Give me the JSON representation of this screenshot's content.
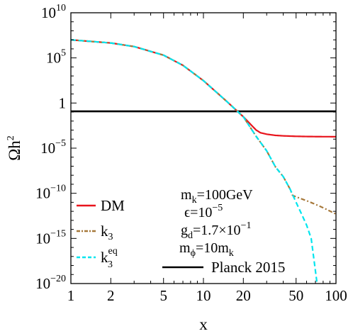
{
  "chart_data": {
    "type": "line",
    "xlabel": "x",
    "ylabel": "Ωh",
    "ylabel_sup": "2",
    "x_scale": "log",
    "y_scale": "log",
    "xlim": [
      1,
      100
    ],
    "ylim": [
      1e-20,
      10000000000.0
    ],
    "grid": false,
    "legend_position": "bottom-left",
    "x_ticks": [
      {
        "value": 1,
        "label": "1"
      },
      {
        "value": 2,
        "label": "2"
      },
      {
        "value": 5,
        "label": "5"
      },
      {
        "value": 10,
        "label": "10"
      },
      {
        "value": 20,
        "label": "20"
      },
      {
        "value": 50,
        "label": "50"
      },
      {
        "value": 100,
        "label": "100"
      }
    ],
    "y_ticks": [
      {
        "value": 10000000000.0,
        "base": "10",
        "exp": "10",
        "label": "10^10"
      },
      {
        "value": 100000.0,
        "base": "10",
        "exp": "5",
        "label": "10^5"
      },
      {
        "value": 1,
        "base": "1",
        "exp": "",
        "label": "1"
      },
      {
        "value": 1e-05,
        "base": "10",
        "exp": "−5",
        "label": "10^-5"
      },
      {
        "value": 1e-10,
        "base": "10",
        "exp": "−10",
        "label": "10^-10"
      },
      {
        "value": 1e-15,
        "base": "10",
        "exp": "−15",
        "label": "10^-15"
      },
      {
        "value": 1e-20,
        "base": "10",
        "exp": "−20",
        "label": "10^-20"
      }
    ],
    "series": [
      {
        "name": "DM",
        "color": "#e8141c",
        "dash": "solid",
        "x": [
          1,
          2,
          3,
          5,
          7,
          10,
          15,
          20,
          25,
          27,
          30,
          35,
          40,
          50,
          60,
          70,
          80,
          100
        ],
        "y": [
          10000000.0,
          4500000.0,
          1800000.0,
          200000.0,
          15000.0,
          300.0,
          1.5,
          0.03,
          0.001,
          0.0005,
          0.00035,
          0.00026,
          0.00023,
          0.000205,
          0.000195,
          0.00019,
          0.000187,
          0.000185
        ]
      },
      {
        "name": "k_3",
        "color": "#a6783a",
        "dash": "6,3,2,3",
        "x": [
          1,
          2,
          3,
          5,
          7,
          10,
          15,
          20,
          25,
          30,
          35,
          40,
          45,
          47,
          50,
          60,
          70,
          80,
          100
        ],
        "y": [
          10000000.0,
          4500000.0,
          1800000.0,
          200000.0,
          15000.0,
          300.0,
          1.5,
          0.03,
          0.0002,
          5e-06,
          8e-08,
          7e-09,
          3e-10,
          6e-11,
          4e-11,
          1.5e-11,
          6e-12,
          2.5e-12,
          5e-13
        ]
      },
      {
        "name": "k_3^eq",
        "color": "#00e5ee",
        "dash": "7,4",
        "x": [
          1,
          2,
          3,
          5,
          7,
          10,
          15,
          20,
          25,
          30,
          35,
          40,
          45,
          50,
          55,
          60,
          65,
          72
        ],
        "y": [
          10000000.0,
          4500000.0,
          1800000.0,
          200000.0,
          15000.0,
          300.0,
          1.5,
          0.03,
          0.0002,
          5e-06,
          8e-08,
          7e-09,
          3e-10,
          1e-11,
          5e-13,
          3e-14,
          1e-15,
          1e-20
        ]
      },
      {
        "name": "Planck 2015",
        "color": "#000000",
        "dash": "solid",
        "x": [
          1,
          100
        ],
        "y": [
          0.12,
          0.12
        ]
      }
    ],
    "legend": [
      {
        "series": 0,
        "label": "DM",
        "sub": "",
        "sup": ""
      },
      {
        "series": 1,
        "label": "k",
        "sub": "3",
        "sup": ""
      },
      {
        "series": 2,
        "label": "k",
        "sub": "3",
        "sup": "eq"
      }
    ],
    "legend_right": {
      "series": 3,
      "label": "Planck 2015"
    },
    "annotations": [
      {
        "id": "mk",
        "parts": [
          {
            "t": "m"
          },
          {
            "t": "k",
            "sub": true
          },
          {
            "t": "=100GeV"
          }
        ]
      },
      {
        "id": "eps",
        "parts": [
          {
            "t": "ϵ=10"
          },
          {
            "t": "−5",
            "sup": true
          }
        ]
      },
      {
        "id": "gd",
        "parts": [
          {
            "t": "g"
          },
          {
            "t": "d",
            "sub": true
          },
          {
            "t": "=1.7×10"
          },
          {
            "t": "−1",
            "sup": true
          }
        ]
      },
      {
        "id": "mphi",
        "parts": [
          {
            "t": "m"
          },
          {
            "t": "ϕ",
            "sub": true
          },
          {
            "t": "=10m"
          },
          {
            "t": "k",
            "sub": true
          }
        ]
      }
    ]
  }
}
